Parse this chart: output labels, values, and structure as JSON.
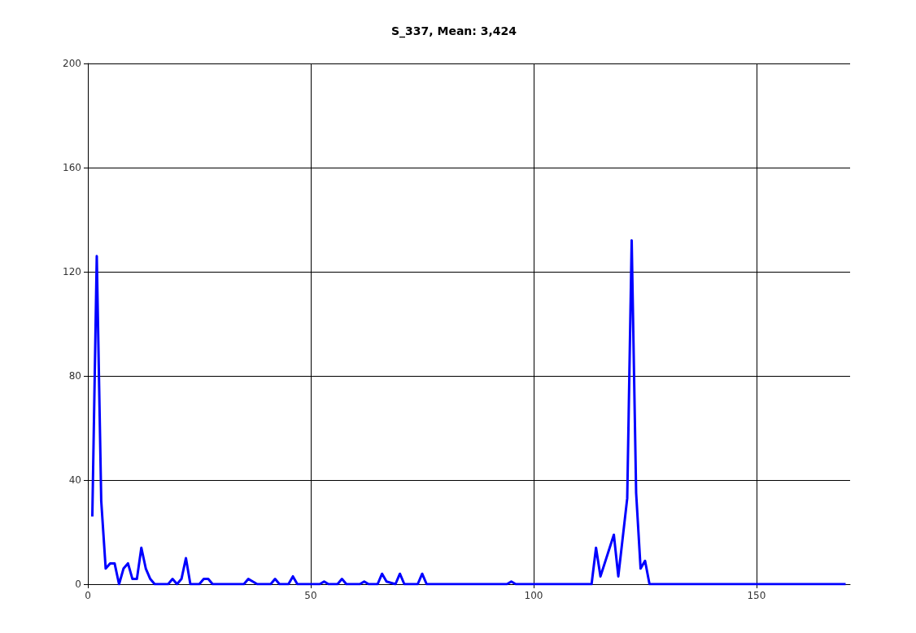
{
  "chart_data": {
    "type": "line",
    "title": "S_337, Mean: 3,424",
    "x": [
      1,
      2,
      3,
      4,
      5,
      6,
      7,
      8,
      9,
      10,
      11,
      12,
      13,
      14,
      15,
      18,
      19,
      20,
      21,
      22,
      23,
      25,
      26,
      27,
      28,
      35,
      36,
      37,
      38,
      41,
      42,
      43,
      45,
      46,
      47,
      52,
      53,
      54,
      56,
      57,
      58,
      61,
      62,
      63,
      65,
      66,
      67,
      69,
      70,
      71,
      74,
      75,
      76,
      94,
      95,
      96,
      113,
      114,
      115,
      118,
      119,
      121,
      122,
      123,
      124,
      125,
      126,
      170
    ],
    "series": [
      {
        "color": "#0000ff",
        "values": [
          26,
          126,
          32,
          6,
          8,
          8,
          0,
          6,
          8,
          2,
          2,
          14,
          6,
          2,
          0,
          0,
          2,
          0,
          2,
          10,
          0,
          0,
          2,
          2,
          0,
          0,
          2,
          1,
          0,
          0,
          2,
          0,
          0,
          3,
          0,
          0,
          1,
          0,
          0,
          2,
          0,
          0,
          1,
          0,
          0,
          4,
          1,
          0,
          4,
          0,
          0,
          4,
          0,
          0,
          1,
          0,
          0,
          14,
          3,
          19,
          3,
          33,
          132,
          35,
          6,
          9,
          0,
          0
        ]
      }
    ],
    "xlim": [
      0,
      171
    ],
    "xticks": [
      0,
      50,
      100,
      150
    ],
    "ylim": [
      0,
      200
    ],
    "yticks": [
      0,
      40,
      80,
      120,
      160,
      200
    ],
    "grid": true,
    "marker": "none",
    "line_style": "solid"
  }
}
